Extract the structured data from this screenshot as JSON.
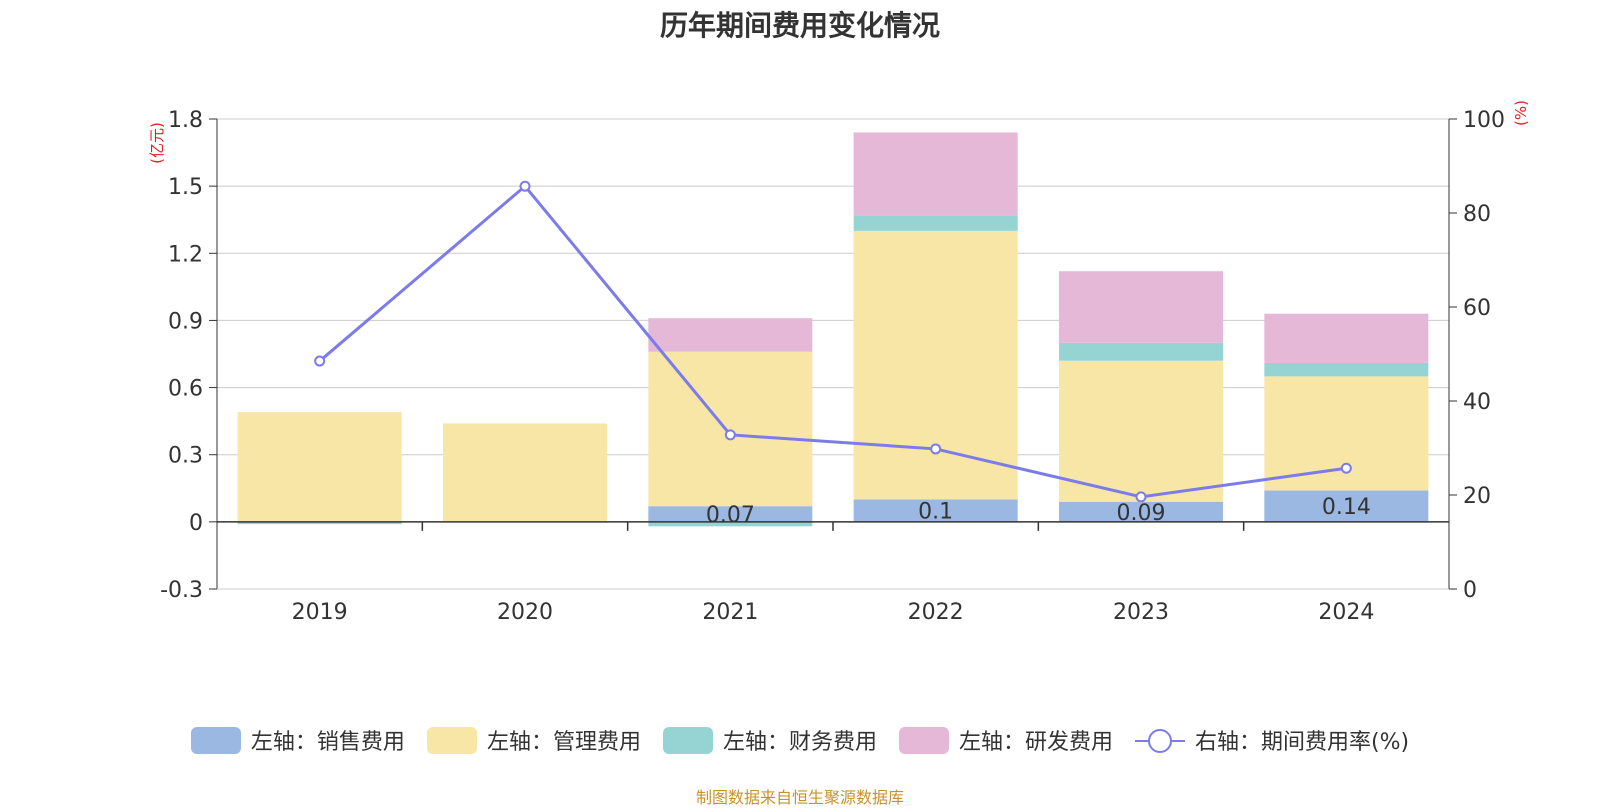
{
  "chart_data": {
    "type": "bar",
    "title": "历年期间费用变化情况",
    "categories": [
      "2019",
      "2020",
      "2021",
      "2022",
      "2023",
      "2024"
    ],
    "left_axis": {
      "unit_label": "(亿元)",
      "ylim": [
        -0.3,
        1.8
      ],
      "ticks": [
        -0.3,
        0,
        0.3,
        0.6,
        0.9,
        1.2,
        1.5,
        1.8
      ]
    },
    "right_axis": {
      "unit_label": "(%)",
      "ylim": [
        0,
        100
      ],
      "ticks": [
        0,
        20,
        40,
        60,
        80,
        100
      ]
    },
    "series": [
      {
        "name": "左轴：销售费用",
        "type": "bar",
        "axis": "left",
        "color": "#9bb8e3",
        "values": [
          0,
          0,
          0.07,
          0.1,
          0.09,
          0.14
        ],
        "labels": [
          "",
          "",
          "0.07",
          "0.1",
          "0.09",
          "0.14"
        ]
      },
      {
        "name": "左轴：管理费用",
        "type": "bar",
        "axis": "left",
        "color": "#f7e6a6",
        "values": [
          0.49,
          0.44,
          0.69,
          1.2,
          0.63,
          0.51
        ]
      },
      {
        "name": "左轴：财务费用",
        "type": "bar",
        "axis": "left",
        "color": "#96d4d4",
        "values": [
          -0.01,
          0,
          -0.02,
          0.07,
          0.08,
          0.06
        ]
      },
      {
        "name": "左轴：研发费用",
        "type": "bar",
        "axis": "left",
        "color": "#e6b8d8",
        "values": [
          0,
          0,
          0.15,
          0.37,
          0.32,
          0.22
        ]
      },
      {
        "name": "右轴：期间费用率(%)",
        "type": "line",
        "axis": "right",
        "color": "#7b7bea",
        "values": [
          48.5,
          85.7,
          32.8,
          29.8,
          19.6,
          25.7
        ]
      }
    ]
  },
  "source": "制图数据来自恒生聚源数据库"
}
